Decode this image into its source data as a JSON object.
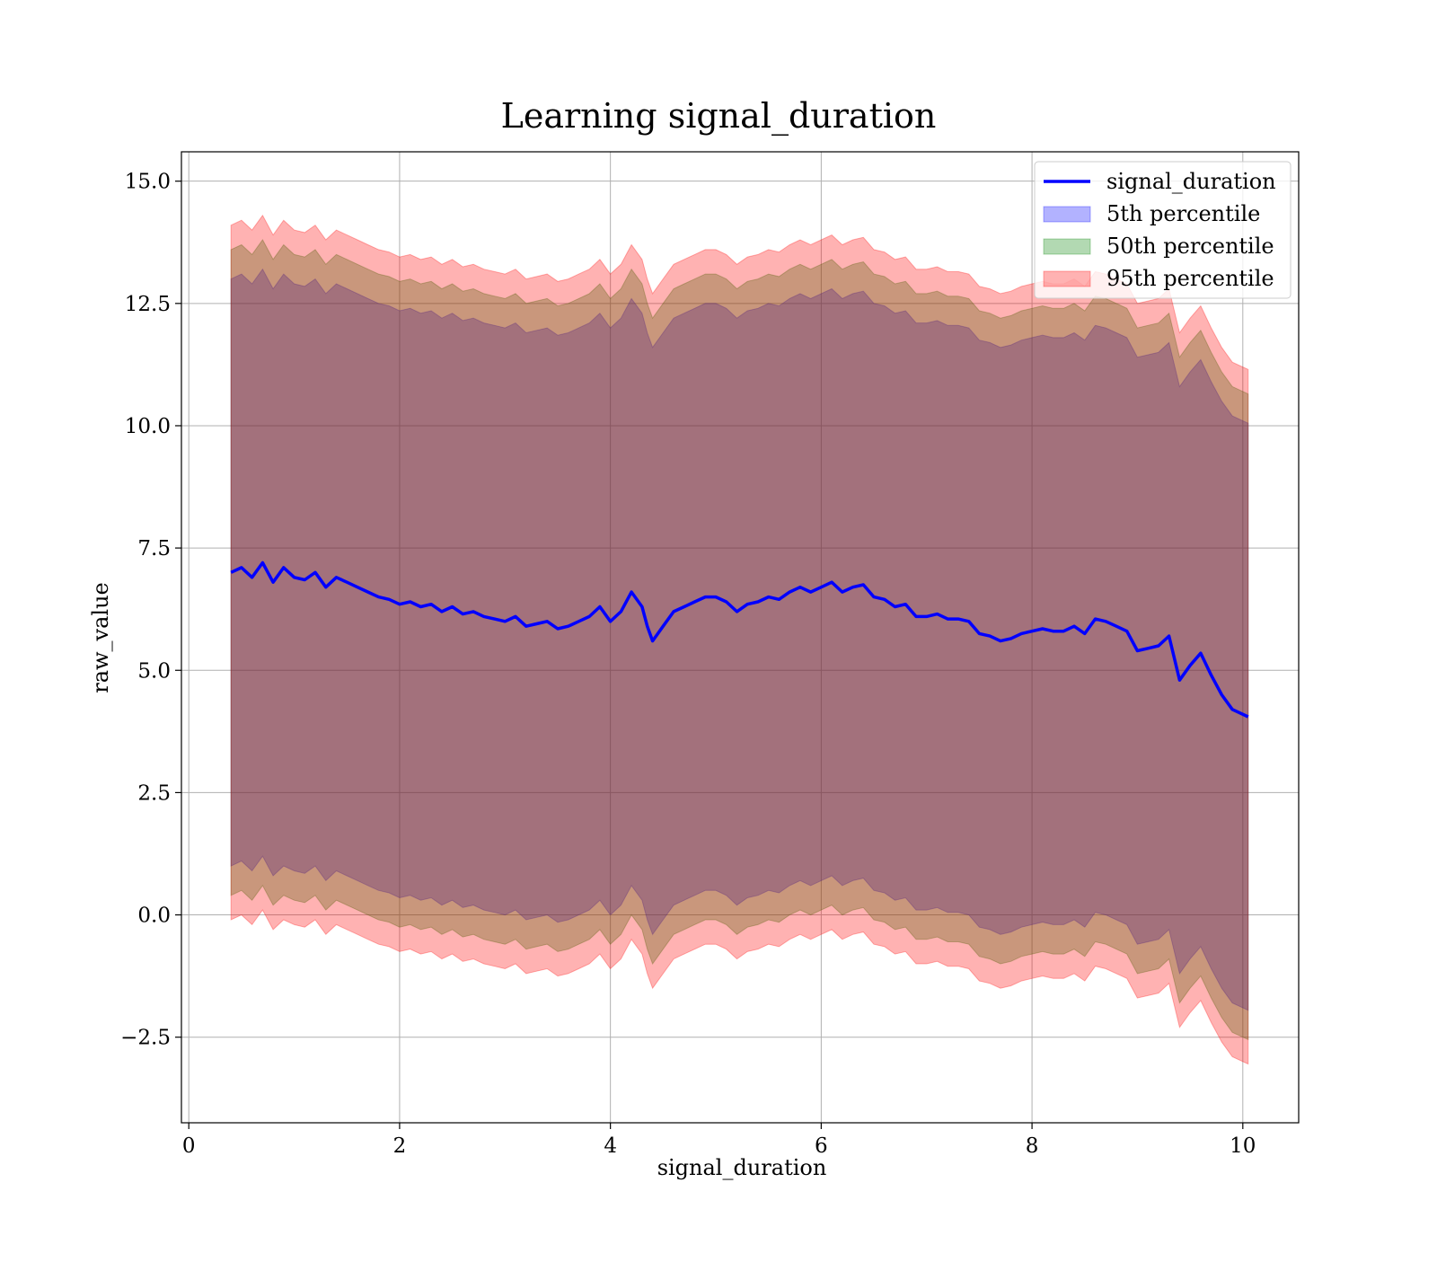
{
  "chart_data": {
    "type": "line",
    "title": "Learning signal_duration",
    "xlabel": "signal_duration",
    "ylabel": "raw_value",
    "xlim": [
      -0.07,
      10.53
    ],
    "ylim": [
      -4.25,
      15.6
    ],
    "xticks": [
      {
        "value": 0,
        "label": "0"
      },
      {
        "value": 2,
        "label": "2"
      },
      {
        "value": 4,
        "label": "4"
      },
      {
        "value": 6,
        "label": "6"
      },
      {
        "value": 8,
        "label": "8"
      },
      {
        "value": 10,
        "label": "10"
      }
    ],
    "yticks": [
      {
        "value": -2.5,
        "label": "−2.5"
      },
      {
        "value": 0,
        "label": "0.0"
      },
      {
        "value": 2.5,
        "label": "2.5"
      },
      {
        "value": 5,
        "label": "5.0"
      },
      {
        "value": 7.5,
        "label": "7.5"
      },
      {
        "value": 10,
        "label": "10.0"
      },
      {
        "value": 12.5,
        "label": "12.5"
      },
      {
        "value": 15,
        "label": "15.0"
      }
    ],
    "grid": true,
    "legend_position": "top-right",
    "legend": [
      {
        "label": "signal_duration",
        "kind": "line",
        "color": "#0000ff"
      },
      {
        "label": "5th percentile",
        "kind": "patch",
        "color": "#0000ff"
      },
      {
        "label": "50th percentile",
        "kind": "patch",
        "color": "#008000"
      },
      {
        "label": "95th percentile",
        "kind": "patch",
        "color": "#ff0000"
      }
    ],
    "x": [
      0.4,
      0.5,
      0.6,
      0.7,
      0.8,
      0.9,
      1.0,
      1.1,
      1.2,
      1.3,
      1.4,
      1.5,
      1.6,
      1.7,
      1.8,
      1.9,
      2.0,
      2.1,
      2.2,
      2.3,
      2.4,
      2.5,
      2.6,
      2.7,
      2.8,
      2.9,
      3.0,
      3.1,
      3.2,
      3.3,
      3.4,
      3.5,
      3.6,
      3.7,
      3.8,
      3.9,
      4.0,
      4.1,
      4.2,
      4.3,
      4.35,
      4.4,
      4.5,
      4.6,
      4.7,
      4.8,
      4.9,
      5.0,
      5.1,
      5.2,
      5.3,
      5.4,
      5.5,
      5.6,
      5.7,
      5.8,
      5.9,
      6.0,
      6.1,
      6.2,
      6.3,
      6.4,
      6.5,
      6.6,
      6.7,
      6.8,
      6.9,
      7.0,
      7.1,
      7.2,
      7.3,
      7.4,
      7.5,
      7.6,
      7.7,
      7.8,
      7.9,
      8.0,
      8.1,
      8.2,
      8.3,
      8.4,
      8.5,
      8.6,
      8.7,
      8.8,
      8.9,
      9.0,
      9.1,
      9.2,
      9.3,
      9.4,
      9.5,
      9.6,
      9.7,
      9.8,
      9.9,
      10.05
    ],
    "series": [
      {
        "name": "signal_duration",
        "color": "#0000ff",
        "values": [
          7.0,
          7.1,
          6.9,
          7.2,
          6.8,
          7.1,
          6.9,
          6.85,
          7.0,
          6.7,
          6.9,
          6.8,
          6.7,
          6.6,
          6.5,
          6.45,
          6.35,
          6.4,
          6.3,
          6.35,
          6.2,
          6.3,
          6.15,
          6.2,
          6.1,
          6.05,
          6.0,
          6.1,
          5.9,
          5.95,
          6.0,
          5.85,
          5.9,
          6.0,
          6.1,
          6.3,
          6.0,
          6.2,
          6.6,
          6.3,
          5.9,
          5.6,
          5.9,
          6.2,
          6.3,
          6.4,
          6.5,
          6.5,
          6.4,
          6.2,
          6.35,
          6.4,
          6.5,
          6.45,
          6.6,
          6.7,
          6.6,
          6.7,
          6.8,
          6.6,
          6.7,
          6.75,
          6.5,
          6.45,
          6.3,
          6.35,
          6.1,
          6.1,
          6.15,
          6.05,
          6.05,
          6.0,
          5.75,
          5.7,
          5.6,
          5.65,
          5.75,
          5.8,
          5.85,
          5.8,
          5.8,
          5.9,
          5.75,
          6.05,
          6.0,
          5.9,
          5.8,
          5.4,
          5.45,
          5.5,
          5.7,
          4.8,
          5.1,
          5.35,
          4.9,
          4.5,
          4.2,
          4.05
        ]
      }
    ],
    "bands": [
      {
        "name": "5th percentile",
        "color": "#0000ff",
        "lower": [
          1.0,
          1.1,
          0.9,
          1.2,
          0.8,
          1.0,
          0.9,
          0.85,
          1.0,
          0.7,
          0.9,
          0.8,
          0.7,
          0.6,
          0.5,
          0.45,
          0.35,
          0.4,
          0.3,
          0.35,
          0.2,
          0.3,
          0.15,
          0.2,
          0.1,
          0.05,
          0.0,
          0.1,
          -0.1,
          -0.05,
          0.0,
          -0.15,
          -0.1,
          0.0,
          0.1,
          0.3,
          0.0,
          0.2,
          0.6,
          0.3,
          -0.1,
          -0.4,
          -0.1,
          0.2,
          0.3,
          0.4,
          0.5,
          0.5,
          0.4,
          0.2,
          0.35,
          0.4,
          0.5,
          0.45,
          0.6,
          0.7,
          0.6,
          0.7,
          0.8,
          0.6,
          0.7,
          0.75,
          0.5,
          0.45,
          0.3,
          0.35,
          0.1,
          0.1,
          0.15,
          0.05,
          0.05,
          0.0,
          -0.25,
          -0.3,
          -0.4,
          -0.35,
          -0.25,
          -0.2,
          -0.15,
          -0.2,
          -0.2,
          -0.1,
          -0.25,
          0.05,
          0.0,
          -0.1,
          -0.2,
          -0.6,
          -0.55,
          -0.5,
          -0.3,
          -1.2,
          -0.9,
          -0.65,
          -1.1,
          -1.5,
          -1.8,
          -1.95
        ],
        "upper": [
          13.0,
          13.1,
          12.9,
          13.2,
          12.8,
          13.1,
          12.9,
          12.85,
          13.0,
          12.7,
          12.9,
          12.8,
          12.7,
          12.6,
          12.5,
          12.45,
          12.35,
          12.4,
          12.3,
          12.35,
          12.2,
          12.3,
          12.15,
          12.2,
          12.1,
          12.05,
          12.0,
          12.1,
          11.9,
          11.95,
          12.0,
          11.85,
          11.9,
          12.0,
          12.1,
          12.3,
          12.0,
          12.2,
          12.6,
          12.3,
          11.9,
          11.6,
          11.9,
          12.2,
          12.3,
          12.4,
          12.5,
          12.5,
          12.4,
          12.2,
          12.35,
          12.4,
          12.5,
          12.45,
          12.6,
          12.7,
          12.6,
          12.7,
          12.8,
          12.6,
          12.7,
          12.75,
          12.5,
          12.45,
          12.3,
          12.35,
          12.1,
          12.1,
          12.15,
          12.05,
          12.05,
          12.0,
          11.75,
          11.7,
          11.6,
          11.65,
          11.75,
          11.8,
          11.85,
          11.8,
          11.8,
          11.9,
          11.75,
          12.05,
          12.0,
          11.9,
          11.8,
          11.4,
          11.45,
          11.5,
          11.7,
          10.8,
          11.1,
          11.35,
          10.9,
          10.5,
          10.2,
          10.05
        ]
      },
      {
        "name": "50th percentile",
        "color": "#008000",
        "lower": [
          0.4,
          0.5,
          0.3,
          0.6,
          0.2,
          0.4,
          0.3,
          0.25,
          0.4,
          0.1,
          0.3,
          0.2,
          0.1,
          0.0,
          -0.1,
          -0.15,
          -0.25,
          -0.2,
          -0.3,
          -0.25,
          -0.4,
          -0.3,
          -0.45,
          -0.4,
          -0.5,
          -0.55,
          -0.6,
          -0.5,
          -0.7,
          -0.65,
          -0.6,
          -0.75,
          -0.7,
          -0.6,
          -0.5,
          -0.3,
          -0.6,
          -0.4,
          0.0,
          -0.3,
          -0.7,
          -1.0,
          -0.7,
          -0.4,
          -0.3,
          -0.2,
          -0.1,
          -0.1,
          -0.2,
          -0.4,
          -0.25,
          -0.2,
          -0.1,
          -0.15,
          0.0,
          0.1,
          0.0,
          0.1,
          0.2,
          0.0,
          0.1,
          0.15,
          -0.1,
          -0.15,
          -0.3,
          -0.25,
          -0.5,
          -0.5,
          -0.45,
          -0.55,
          -0.55,
          -0.6,
          -0.85,
          -0.9,
          -1.0,
          -0.95,
          -0.85,
          -0.8,
          -0.75,
          -0.8,
          -0.8,
          -0.7,
          -0.85,
          -0.55,
          -0.6,
          -0.7,
          -0.8,
          -1.2,
          -1.15,
          -1.1,
          -0.9,
          -1.8,
          -1.5,
          -1.25,
          -1.7,
          -2.1,
          -2.4,
          -2.55
        ],
        "upper": [
          13.6,
          13.7,
          13.5,
          13.8,
          13.4,
          13.7,
          13.5,
          13.45,
          13.6,
          13.3,
          13.5,
          13.4,
          13.3,
          13.2,
          13.1,
          13.05,
          12.95,
          13.0,
          12.9,
          12.95,
          12.8,
          12.9,
          12.75,
          12.8,
          12.7,
          12.65,
          12.6,
          12.7,
          12.5,
          12.55,
          12.6,
          12.45,
          12.5,
          12.6,
          12.7,
          12.9,
          12.6,
          12.8,
          13.2,
          12.9,
          12.5,
          12.2,
          12.5,
          12.8,
          12.9,
          13.0,
          13.1,
          13.1,
          13.0,
          12.8,
          12.95,
          13.0,
          13.1,
          13.05,
          13.2,
          13.3,
          13.2,
          13.3,
          13.4,
          13.2,
          13.3,
          13.35,
          13.1,
          13.05,
          12.9,
          12.95,
          12.7,
          12.7,
          12.75,
          12.65,
          12.65,
          12.6,
          12.35,
          12.3,
          12.2,
          12.25,
          12.35,
          12.4,
          12.45,
          12.4,
          12.4,
          12.5,
          12.35,
          12.65,
          12.6,
          12.5,
          12.4,
          12.0,
          12.05,
          12.1,
          12.3,
          11.4,
          11.7,
          11.95,
          11.5,
          11.1,
          10.8,
          10.65
        ]
      },
      {
        "name": "95th percentile",
        "color": "#ff0000",
        "lower": [
          -0.1,
          0.0,
          -0.2,
          0.1,
          -0.3,
          -0.1,
          -0.2,
          -0.25,
          -0.1,
          -0.4,
          -0.2,
          -0.3,
          -0.4,
          -0.5,
          -0.6,
          -0.65,
          -0.75,
          -0.7,
          -0.8,
          -0.75,
          -0.9,
          -0.8,
          -0.95,
          -0.9,
          -1.0,
          -1.05,
          -1.1,
          -1.0,
          -1.2,
          -1.15,
          -1.1,
          -1.25,
          -1.2,
          -1.1,
          -1.0,
          -0.8,
          -1.1,
          -0.9,
          -0.5,
          -0.8,
          -1.2,
          -1.5,
          -1.2,
          -0.9,
          -0.8,
          -0.7,
          -0.6,
          -0.6,
          -0.7,
          -0.9,
          -0.75,
          -0.7,
          -0.6,
          -0.65,
          -0.5,
          -0.4,
          -0.5,
          -0.4,
          -0.3,
          -0.5,
          -0.4,
          -0.35,
          -0.6,
          -0.65,
          -0.8,
          -0.75,
          -1.0,
          -1.0,
          -0.95,
          -1.05,
          -1.05,
          -1.1,
          -1.35,
          -1.4,
          -1.5,
          -1.45,
          -1.35,
          -1.3,
          -1.25,
          -1.3,
          -1.3,
          -1.2,
          -1.35,
          -1.05,
          -1.1,
          -1.2,
          -1.3,
          -1.7,
          -1.65,
          -1.6,
          -1.4,
          -2.3,
          -2.0,
          -1.75,
          -2.2,
          -2.6,
          -2.9,
          -3.05
        ],
        "upper": [
          14.1,
          14.2,
          14.0,
          14.3,
          13.9,
          14.2,
          14.0,
          13.95,
          14.1,
          13.8,
          14.0,
          13.9,
          13.8,
          13.7,
          13.6,
          13.55,
          13.45,
          13.5,
          13.4,
          13.45,
          13.3,
          13.4,
          13.25,
          13.3,
          13.2,
          13.15,
          13.1,
          13.2,
          13.0,
          13.05,
          13.1,
          12.95,
          13.0,
          13.1,
          13.2,
          13.4,
          13.1,
          13.3,
          13.7,
          13.4,
          13.0,
          12.7,
          13.0,
          13.3,
          13.4,
          13.5,
          13.6,
          13.6,
          13.5,
          13.3,
          13.45,
          13.5,
          13.6,
          13.55,
          13.7,
          13.8,
          13.7,
          13.8,
          13.9,
          13.7,
          13.8,
          13.85,
          13.6,
          13.55,
          13.4,
          13.45,
          13.2,
          13.2,
          13.25,
          13.15,
          13.15,
          13.1,
          12.85,
          12.8,
          12.7,
          12.75,
          12.85,
          12.9,
          12.95,
          12.9,
          12.9,
          13.0,
          12.85,
          13.15,
          13.1,
          13.0,
          12.9,
          12.5,
          12.55,
          12.6,
          12.8,
          11.9,
          12.2,
          12.45,
          12.0,
          11.6,
          11.3,
          11.15
        ]
      }
    ]
  }
}
